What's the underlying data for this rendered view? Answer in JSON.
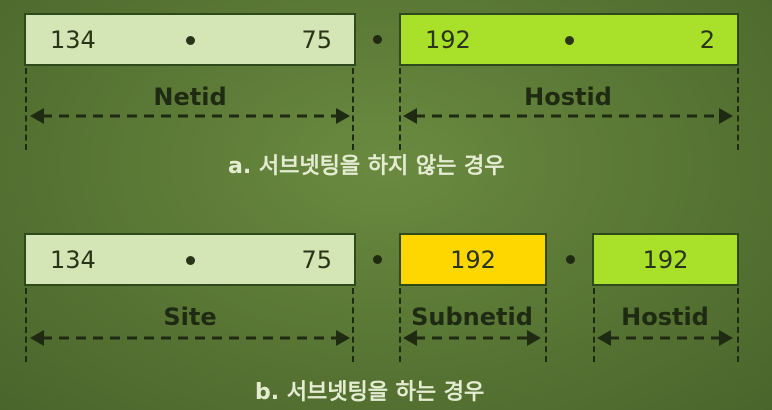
{
  "a": {
    "netid": {
      "left": "134",
      "right": "75"
    },
    "hostid": {
      "left": "192",
      "right": "2"
    },
    "label_net": "Netid",
    "label_host": "Hostid",
    "caption": "a. 서브넷팅을 하지 않는 경우"
  },
  "b": {
    "site": {
      "left": "134",
      "right": "75"
    },
    "subnet_value": "192",
    "host_value": "192",
    "label_site": "Site",
    "label_subnet": "Subnetid",
    "label_host": "Hostid",
    "caption": "b. 서브넷팅을 하는 경우"
  },
  "colors": {
    "light": "#d4e6b5",
    "lime": "#a8e02a",
    "yellow": "#ffd700",
    "background": "#587534"
  }
}
